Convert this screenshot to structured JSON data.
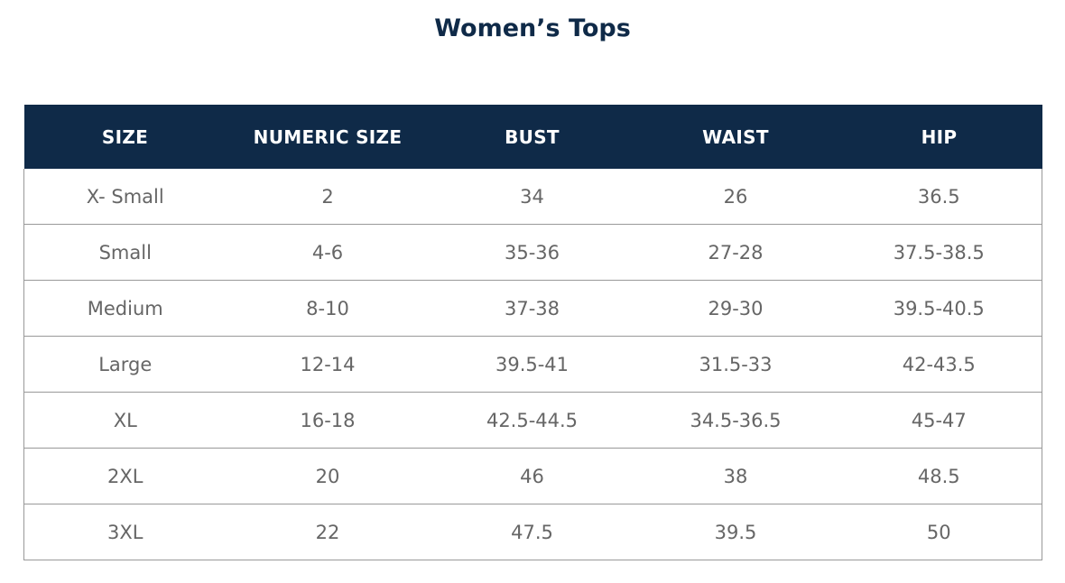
{
  "title": "Women’s Tops",
  "colors": {
    "header_bg": "#0f2a48",
    "title": "#0f2a48",
    "cell_text": "#666666"
  },
  "table": {
    "headers": [
      "SIZE",
      "NUMERIC SIZE",
      "BUST",
      "WAIST",
      "HIP"
    ],
    "rows": [
      [
        "X- Small",
        "2",
        "34",
        "26",
        "36.5"
      ],
      [
        "Small",
        "4-6",
        "35-36",
        "27-28",
        "37.5-38.5"
      ],
      [
        "Medium",
        "8-10",
        "37-38",
        "29-30",
        "39.5-40.5"
      ],
      [
        "Large",
        "12-14",
        "39.5-41",
        "31.5-33",
        "42-43.5"
      ],
      [
        "XL",
        "16-18",
        "42.5-44.5",
        "34.5-36.5",
        "45-47"
      ],
      [
        "2XL",
        "20",
        "46",
        "38",
        "48.5"
      ],
      [
        "3XL",
        "22",
        "47.5",
        "39.5",
        "50"
      ]
    ]
  }
}
